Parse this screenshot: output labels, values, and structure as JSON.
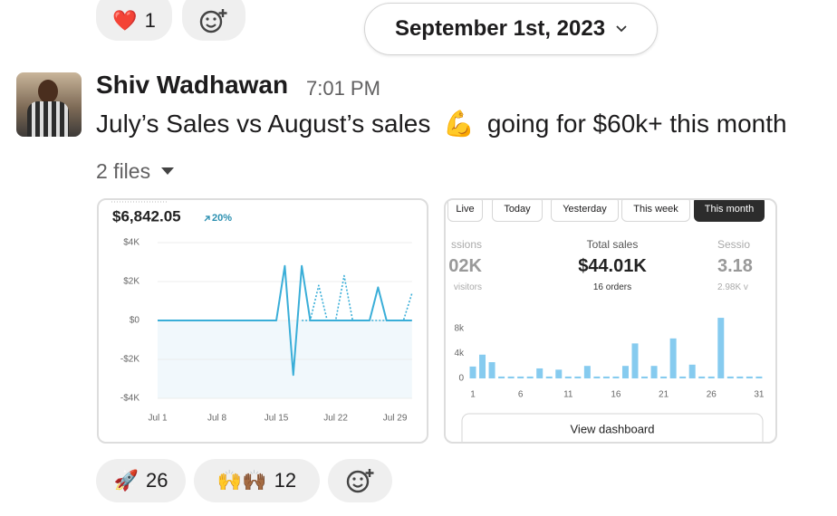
{
  "reactions_top": [
    {
      "emoji": "❤️",
      "count": 1
    }
  ],
  "date_divider": "September 1st, 2023",
  "message": {
    "author": "Shiv Wadhawan",
    "time": "7:01 PM",
    "text_before": "July’s Sales vs August’s sales",
    "emoji": "💪",
    "text_after": "going for $60k+ this month",
    "files_label": "2 files"
  },
  "file1": {
    "total": "$6,842.05",
    "change": "20%",
    "chart_data": {
      "type": "line",
      "categories": [
        "Jul 1",
        null,
        null,
        null,
        null,
        null,
        null,
        "Jul 8",
        null,
        null,
        null,
        null,
        null,
        null,
        "Jul 15",
        null,
        null,
        null,
        null,
        null,
        null,
        "Jul 22",
        null,
        null,
        null,
        null,
        null,
        null,
        "Jul 29",
        null,
        null
      ],
      "series": [
        {
          "color": "#3aaed8",
          "style": "solid",
          "values": [
            0,
            0,
            0,
            0,
            0,
            0,
            0,
            0,
            0,
            0,
            0,
            0,
            0,
            0,
            0,
            2800,
            -2800,
            2800,
            0,
            0,
            0,
            0,
            0,
            0,
            0,
            0,
            1700,
            0,
            0,
            0,
            0
          ]
        },
        {
          "color": "#3aaed8",
          "style": "dotted",
          "values": [
            null,
            null,
            null,
            null,
            null,
            null,
            null,
            null,
            null,
            null,
            null,
            null,
            null,
            null,
            null,
            null,
            null,
            0,
            0,
            1800,
            0,
            0,
            2300,
            0,
            0,
            0,
            0,
            0,
            0,
            0,
            1400
          ]
        }
      ],
      "ylim": [
        -4000,
        4000
      ],
      "yticks": [
        {
          "value": 4000,
          "label": "$4K"
        },
        {
          "value": 2000,
          "label": "$2K"
        },
        {
          "value": 0,
          "label": "$0"
        },
        {
          "value": -2000,
          "label": "-$2K"
        },
        {
          "value": -4000,
          "label": "-$4K"
        }
      ],
      "grid": true
    }
  },
  "file2": {
    "tabs": [
      "Live",
      "Today",
      "Yesterday",
      "This week",
      "This month"
    ],
    "selected_tab": 4,
    "stats": [
      {
        "label": "ssions",
        "value": "02K",
        "sub": "visitors"
      },
      {
        "label": "Total sales",
        "value": "$44.01K",
        "sub": "16 orders"
      },
      {
        "label": "Sessio",
        "value": "3.18",
        "sub": "2.98K v"
      }
    ],
    "chart_data": {
      "type": "bar",
      "categories": [
        "1",
        null,
        null,
        null,
        null,
        "6",
        null,
        null,
        null,
        null,
        "11",
        null,
        null,
        null,
        null,
        "16",
        null,
        null,
        null,
        null,
        "21",
        null,
        null,
        null,
        null,
        "26",
        null,
        null,
        null,
        null,
        "31"
      ],
      "values": [
        1900,
        3800,
        2600,
        300,
        300,
        300,
        300,
        1600,
        300,
        1400,
        300,
        300,
        2000,
        300,
        300,
        300,
        2000,
        5600,
        300,
        2000,
        300,
        6400,
        300,
        2200,
        300,
        300,
        9700,
        300,
        300,
        300,
        300
      ],
      "color": "#86cbef",
      "ylim": [
        0,
        10000
      ],
      "yticks": [
        0,
        {
          "value": 4000,
          "label": "4k"
        },
        {
          "value": 8000,
          "label": "8k"
        }
      ]
    },
    "button": "View dashboard"
  },
  "reactions_bottom": [
    {
      "emoji": "🚀",
      "count": 26
    },
    {
      "emoji": "🙌🙌🏾",
      "count": 12
    }
  ]
}
